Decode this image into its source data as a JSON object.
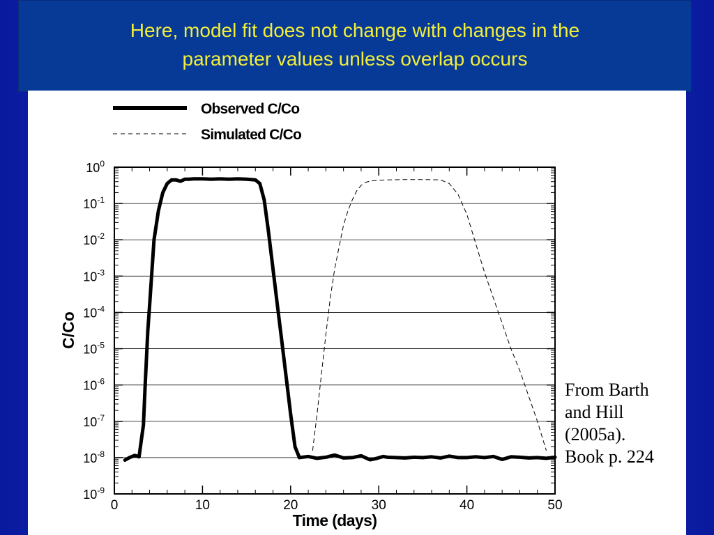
{
  "slide": {
    "title_line1": "Here, model fit does not change with changes in the",
    "title_line2": "parameter values unless overlap occurs",
    "citation": [
      "From Barth",
      "and Hill",
      "(2005a).",
      "Book p. 224"
    ],
    "colors": {
      "background": "#1533cc",
      "title_band": "#063a96",
      "title_text": "#f2ee3a",
      "panel": "#ffffff"
    }
  },
  "chart_data": {
    "type": "line",
    "title": "",
    "xlabel": "Time (days)",
    "ylabel": "C/Co",
    "xlim": [
      0,
      50
    ],
    "ylim_log10": [
      -9,
      0
    ],
    "y_scale": "log",
    "grid": "horizontal",
    "legend_position": "top-left",
    "x_ticks": [
      0,
      10,
      20,
      30,
      40,
      50
    ],
    "y_tick_base": "10",
    "y_tick_exponents": [
      "0",
      "-1",
      "-2",
      "-3",
      "-4",
      "-5",
      "-6",
      "-7",
      "-8",
      "-9"
    ],
    "series": [
      {
        "name": "Observed C/Co",
        "style": "solid-thick",
        "color": "#000000",
        "points": [
          [
            1.2,
            -8.07
          ],
          [
            1.7,
            -8.0
          ],
          [
            2.3,
            -7.94
          ],
          [
            2.8,
            -7.98
          ],
          [
            3.3,
            -7.1
          ],
          [
            3.5,
            -6.0
          ],
          [
            3.8,
            -4.5
          ],
          [
            4.0,
            -3.8
          ],
          [
            4.5,
            -2.0
          ],
          [
            5.0,
            -1.2
          ],
          [
            5.5,
            -0.7
          ],
          [
            6.0,
            -0.45
          ],
          [
            6.5,
            -0.35
          ],
          [
            7.0,
            -0.35
          ],
          [
            7.5,
            -0.39
          ],
          [
            8.0,
            -0.33
          ],
          [
            8.5,
            -0.33
          ],
          [
            9.0,
            -0.32
          ],
          [
            10.0,
            -0.32
          ],
          [
            11.0,
            -0.33
          ],
          [
            12.0,
            -0.32
          ],
          [
            13.0,
            -0.33
          ],
          [
            14.0,
            -0.32
          ],
          [
            15.0,
            -0.33
          ],
          [
            16.0,
            -0.35
          ],
          [
            16.5,
            -0.45
          ],
          [
            17.0,
            -0.9
          ],
          [
            17.5,
            -1.8
          ],
          [
            18.0,
            -2.8
          ],
          [
            18.5,
            -3.8
          ],
          [
            19.0,
            -4.8
          ],
          [
            19.5,
            -5.8
          ],
          [
            20.0,
            -6.8
          ],
          [
            20.5,
            -7.7
          ],
          [
            21.0,
            -8.0
          ],
          [
            22.0,
            -7.97
          ],
          [
            23.0,
            -8.02
          ],
          [
            24.0,
            -7.99
          ],
          [
            25.0,
            -7.93
          ],
          [
            26.0,
            -8.01
          ],
          [
            27.0,
            -8.0
          ],
          [
            28.0,
            -7.95
          ],
          [
            29.0,
            -8.06
          ],
          [
            29.8,
            -8.02
          ],
          [
            30.5,
            -7.97
          ],
          [
            31.0,
            -7.99
          ],
          [
            32.0,
            -8.0
          ],
          [
            33.0,
            -8.01
          ],
          [
            34.0,
            -7.99
          ],
          [
            35.0,
            -8.0
          ],
          [
            36.0,
            -7.98
          ],
          [
            37.0,
            -8.01
          ],
          [
            38.0,
            -7.96
          ],
          [
            39.0,
            -8.0
          ],
          [
            40.0,
            -8.0
          ],
          [
            41.0,
            -7.98
          ],
          [
            42.0,
            -8.0
          ],
          [
            43.0,
            -7.97
          ],
          [
            44.0,
            -8.05
          ],
          [
            45.0,
            -7.98
          ],
          [
            46.0,
            -7.99
          ],
          [
            47.0,
            -8.01
          ],
          [
            48.0,
            -8.0
          ],
          [
            49.0,
            -8.02
          ],
          [
            50.0,
            -7.99
          ]
        ]
      },
      {
        "name": "Simulated C/Co",
        "style": "dashed-thin",
        "color": "#000000",
        "points": [
          [
            22.5,
            -7.8
          ],
          [
            23.0,
            -6.8
          ],
          [
            23.5,
            -5.7
          ],
          [
            24.0,
            -4.6
          ],
          [
            24.5,
            -3.6
          ],
          [
            25.0,
            -2.8
          ],
          [
            25.5,
            -2.2
          ],
          [
            26.0,
            -1.6
          ],
          [
            26.5,
            -1.2
          ],
          [
            27.0,
            -0.9
          ],
          [
            27.5,
            -0.65
          ],
          [
            28.0,
            -0.5
          ],
          [
            28.5,
            -0.42
          ],
          [
            29.0,
            -0.38
          ],
          [
            30.0,
            -0.36
          ],
          [
            31.0,
            -0.35
          ],
          [
            33.0,
            -0.34
          ],
          [
            35.0,
            -0.34
          ],
          [
            37.0,
            -0.35
          ],
          [
            38.0,
            -0.45
          ],
          [
            39.0,
            -0.75
          ],
          [
            40.0,
            -1.3
          ],
          [
            41.0,
            -2.1
          ],
          [
            42.0,
            -2.9
          ],
          [
            43.0,
            -3.6
          ],
          [
            44.0,
            -4.3
          ],
          [
            45.0,
            -5.0
          ],
          [
            46.0,
            -5.6
          ],
          [
            47.0,
            -6.3
          ],
          [
            48.0,
            -7.0
          ],
          [
            49.0,
            -7.8
          ]
        ]
      }
    ]
  }
}
